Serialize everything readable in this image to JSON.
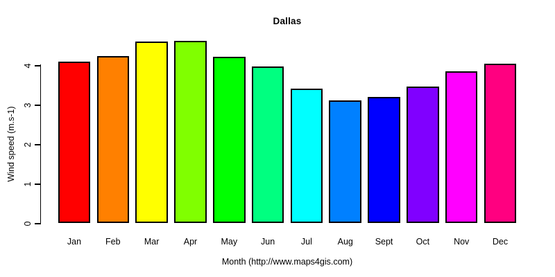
{
  "figure": {
    "background": "#ffffff",
    "text_color": "#000000"
  },
  "chart_data": {
    "type": "bar",
    "title": "Dallas",
    "xlabel": "Month (http://www.maps4gis.com)",
    "ylabel": "Wind speed (m.s-1)",
    "categories": [
      "Jan",
      "Feb",
      "Mar",
      "Apr",
      "May",
      "Jun",
      "Jul",
      "Aug",
      "Sept",
      "Oct",
      "Nov",
      "Dec"
    ],
    "values": [
      4.08,
      4.23,
      4.6,
      4.61,
      4.21,
      3.96,
      3.4,
      3.1,
      3.2,
      3.45,
      3.85,
      4.03
    ],
    "bar_colors": [
      "#FF0000",
      "#FF8000",
      "#FFFF00",
      "#80FF00",
      "#00FF00",
      "#00FF80",
      "#00FFFF",
      "#0080FF",
      "#0000FF",
      "#8000FF",
      "#FF00FF",
      "#FF0080"
    ],
    "bar_border_color": "#000000",
    "yticks": [
      0,
      1,
      2,
      3,
      4
    ],
    "ylim": [
      0,
      4.61
    ],
    "grid": false,
    "legend": "none",
    "axis_color": "#000000"
  }
}
